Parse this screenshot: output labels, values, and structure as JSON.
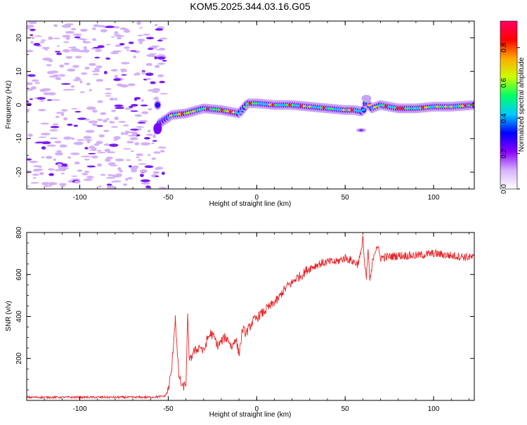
{
  "chart_data": [
    {
      "type": "heatmap",
      "title": "KOM5.2025.344.03.16.G05",
      "xlabel": "Height of straight line (km)",
      "ylabel": "Frequency (Hz)",
      "xlim": [
        -130,
        123
      ],
      "ylim": [
        -25,
        25
      ],
      "x_ticks": [
        -100,
        -50,
        0,
        50,
        100
      ],
      "x_tick_labels": [
        "-100",
        "-50",
        "0",
        "50",
        "100"
      ],
      "y_ticks": [
        -20,
        -10,
        0,
        10,
        20
      ],
      "y_tick_labels": [
        "-20",
        "-10",
        "0",
        "10",
        "20"
      ],
      "colorbar": {
        "label": "Normalized spectral amplitude",
        "range": [
          0,
          0.95
        ],
        "ticks": [
          0,
          0.2,
          0.4,
          0.6,
          0.8
        ],
        "tick_labels": [
          "0.0",
          "0.2",
          "0.4",
          "0.6",
          "0.8"
        ],
        "colors": [
          "#ffffff",
          "#d6b3ff",
          "#8800ff",
          "#0000ff",
          "#00ccff",
          "#00ff66",
          "#ccff00",
          "#ffaa00",
          "#ff0000",
          "#ff0066"
        ]
      },
      "ridge_line": {
        "description_km": [
          -55,
          -48,
          -40,
          -30,
          -20,
          -10,
          -5,
          0,
          10,
          20,
          30,
          40,
          50,
          55,
          60,
          62,
          65,
          70,
          80,
          90,
          100,
          110,
          123
        ],
        "frequency_hz": [
          -5.5,
          -3,
          -2.5,
          -1,
          -1.5,
          -2.5,
          0.5,
          0.5,
          0,
          0,
          -0.5,
          -1,
          -1.5,
          -1.5,
          -2,
          1,
          -1,
          0,
          -1,
          -1,
          -0.5,
          -0.5,
          0
        ]
      }
    },
    {
      "type": "line",
      "title": "",
      "xlabel": "Height of straight line (km)",
      "ylabel": "SNR (v/v)",
      "xlim": [
        -130,
        123
      ],
      "ylim": [
        0,
        800
      ],
      "x_ticks": [
        -100,
        -50,
        0,
        50,
        100
      ],
      "x_tick_labels": [
        "-100",
        "-50",
        "0",
        "50",
        "100"
      ],
      "y_ticks": [
        200,
        400,
        600,
        800
      ],
      "y_tick_labels": [
        "200",
        "400",
        "600",
        "800"
      ],
      "color": "#e8252a",
      "series": [
        {
          "name": "SNR",
          "x": [
            -130,
            -60,
            -52,
            -50,
            -48,
            -46,
            -45,
            -44,
            -42,
            -40,
            -39,
            -38,
            -36,
            -34,
            -32,
            -30,
            -28,
            -26,
            -24,
            -22,
            -20,
            -18,
            -16,
            -14,
            -12,
            -10,
            -8,
            -6,
            -4,
            -2,
            0,
            2,
            4,
            6,
            8,
            10,
            12,
            14,
            16,
            18,
            20,
            22,
            24,
            26,
            28,
            30,
            35,
            40,
            45,
            50,
            55,
            57,
            59,
            60,
            61,
            62,
            63,
            64,
            66,
            68,
            70,
            80,
            90,
            100,
            110,
            123
          ],
          "y": [
            15,
            15,
            20,
            50,
            150,
            400,
            240,
            120,
            60,
            80,
            395,
            180,
            230,
            240,
            260,
            230,
            290,
            320,
            300,
            260,
            280,
            300,
            290,
            250,
            300,
            220,
            340,
            320,
            350,
            380,
            390,
            410,
            420,
            440,
            450,
            470,
            480,
            510,
            530,
            550,
            560,
            580,
            590,
            600,
            620,
            630,
            650,
            660,
            660,
            680,
            660,
            650,
            700,
            790,
            640,
            580,
            720,
            560,
            690,
            740,
            680,
            690,
            690,
            700,
            690,
            680
          ]
        }
      ]
    }
  ]
}
